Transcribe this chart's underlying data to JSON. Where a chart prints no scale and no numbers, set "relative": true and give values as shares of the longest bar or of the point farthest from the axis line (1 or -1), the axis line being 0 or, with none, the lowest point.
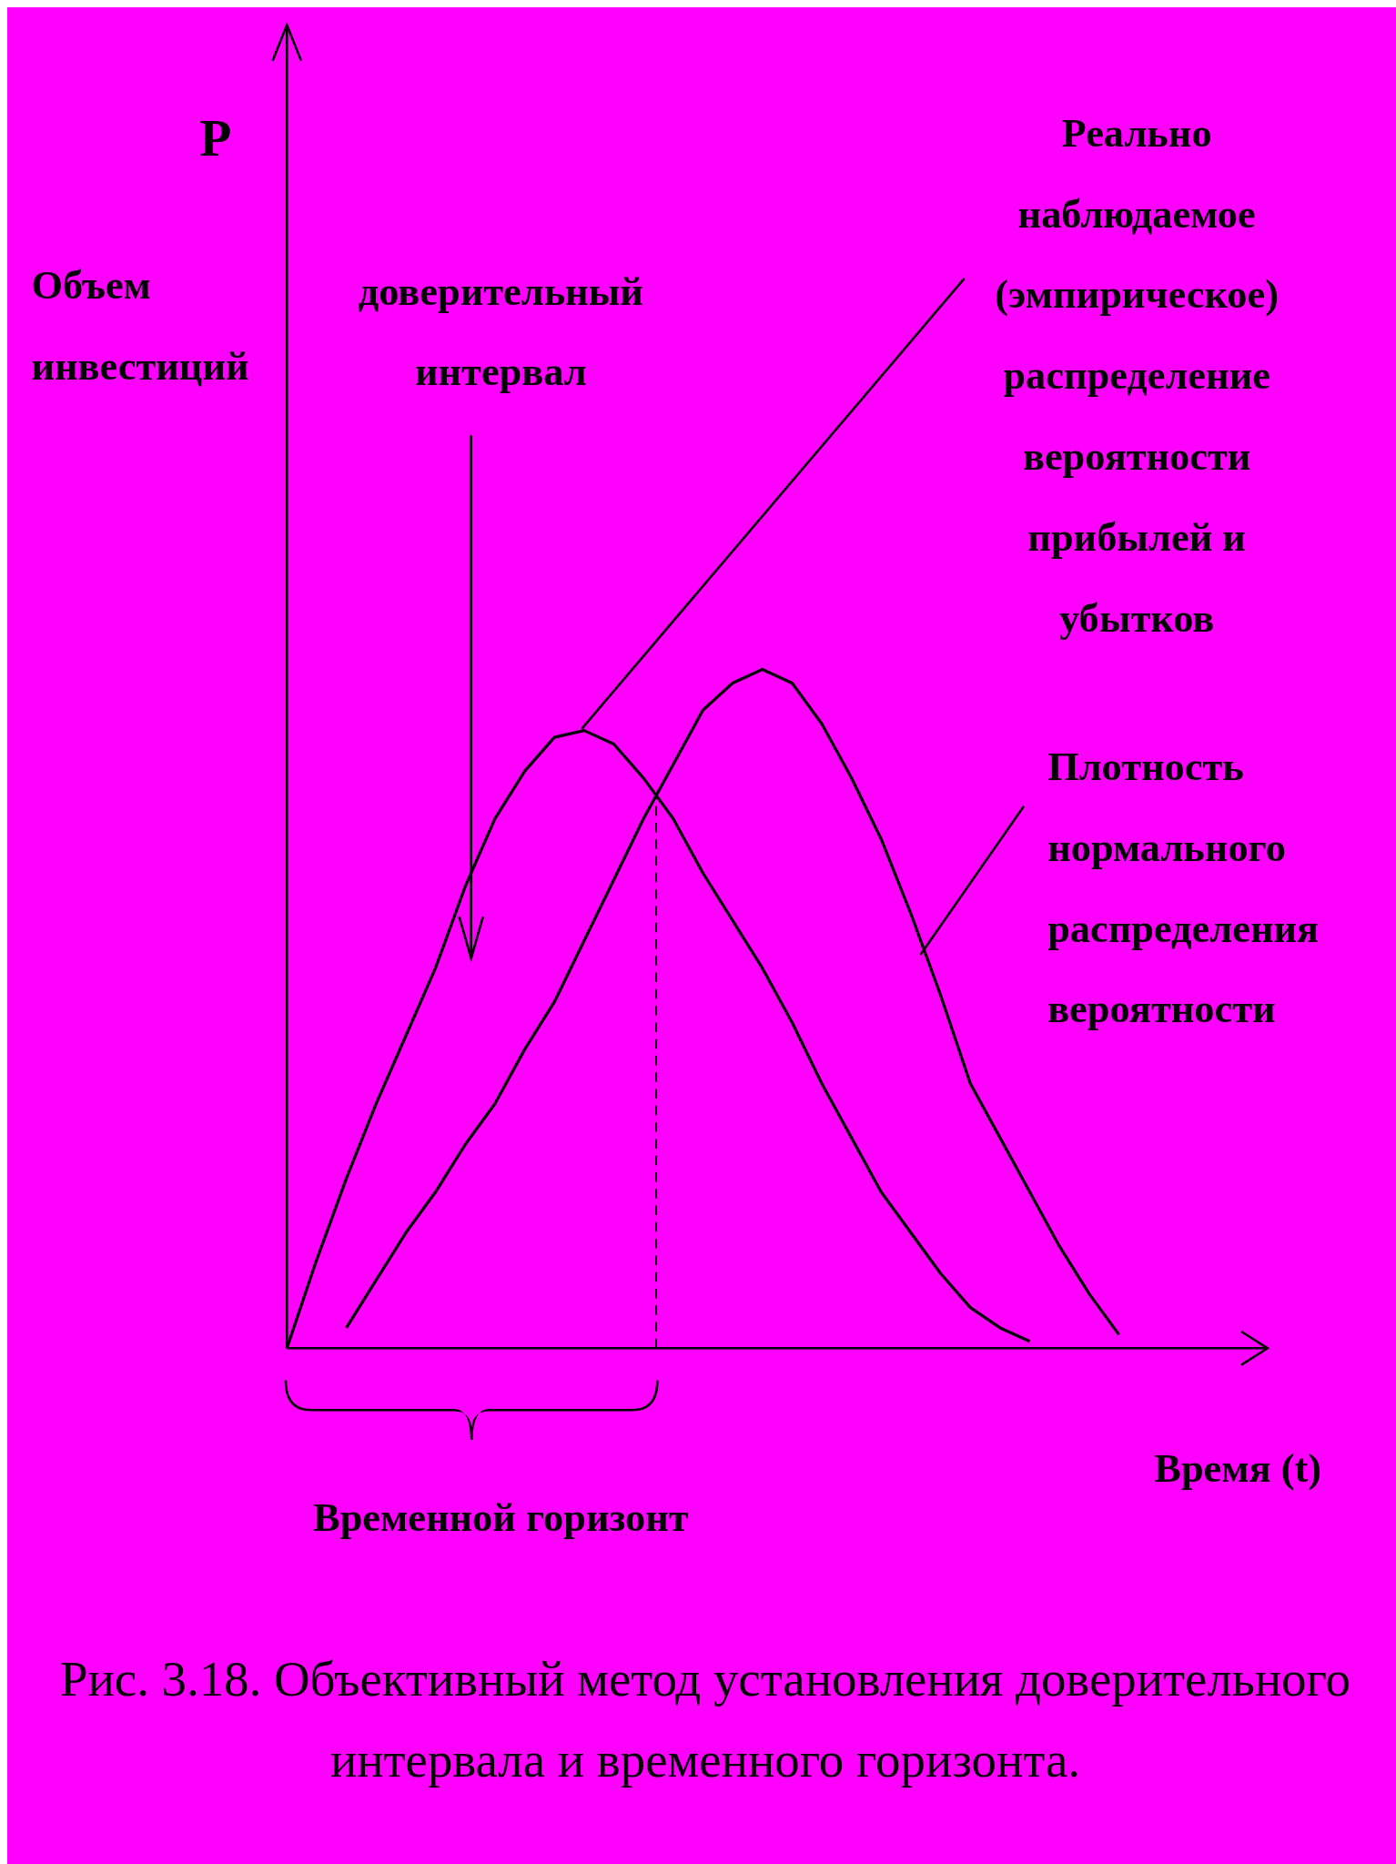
{
  "chart_data": {
    "type": "line",
    "relative": true,
    "xlabel": "Время (t)",
    "categories": [
      null,
      null,
      null,
      null,
      null,
      null,
      null,
      null,
      null,
      null,
      null,
      null,
      null,
      null,
      null,
      null,
      null,
      null,
      null,
      null,
      null,
      null,
      null,
      null,
      null,
      null,
      null,
      null,
      null,
      null,
      null,
      null,
      null
    ],
    "series": [
      {
        "name": "Реально наблюдаемое (эмпирическое) распределение вероятности прибылей и убытков",
        "color": "#000000",
        "values": [
          0,
          0.13,
          0.25,
          0.36,
          0.46,
          0.56,
          0.68,
          0.78,
          0.85,
          0.9,
          0.91,
          0.89,
          0.84,
          0.78,
          0.7,
          0.63,
          0.56,
          0.48,
          0.39,
          0.31,
          0.23,
          0.17,
          0.11,
          0.06,
          0.03,
          0.01,
          null,
          null,
          null,
          null,
          null,
          null,
          null
        ]
      },
      {
        "name": "Плотность нормального распределения вероятности",
        "color": "#000000",
        "values": [
          null,
          null,
          0.03,
          0.1,
          0.17,
          0.23,
          0.3,
          0.36,
          0.44,
          0.51,
          0.6,
          0.69,
          0.78,
          0.86,
          0.94,
          0.98,
          1,
          0.98,
          0.92,
          0.84,
          0.75,
          0.64,
          0.52,
          0.39,
          0.31,
          0.23,
          0.15,
          0.08,
          0.02,
          null,
          null,
          null,
          null
        ]
      }
    ],
    "annotations": [
      "P",
      "Объем инвестиций",
      "доверительный интервал",
      "Временной горизонт",
      "Рис. 3.18. Объективный метод установления доверительного интервала и временного горизонта."
    ],
    "line_style": "solid"
  }
}
